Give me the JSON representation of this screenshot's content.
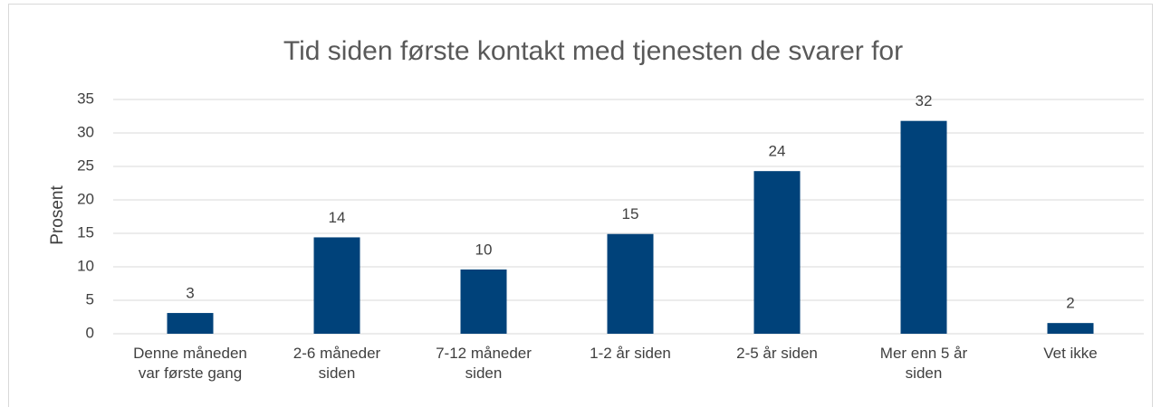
{
  "chart_data": {
    "type": "bar",
    "title": "Tid siden første kontakt med tjenesten de svarer for",
    "y_label": "Prosent",
    "categories": [
      "Denne måneden var første gang",
      "2-6 måneder siden",
      "7-12 måneder siden",
      "1-2 år siden",
      "2-5 år siden",
      "Mer enn 5 år siden",
      "Vet ikke"
    ],
    "values": [
      3.1,
      14.4,
      9.6,
      14.9,
      24.3,
      31.8,
      1.6
    ],
    "value_labels": [
      "3",
      "14",
      "10",
      "15",
      "24",
      "32",
      "2"
    ],
    "color": "#00427a",
    "ylim": [
      0,
      35
    ],
    "yticks": [
      0,
      5,
      10,
      15,
      20,
      25,
      30,
      35
    ],
    "grid": true
  }
}
